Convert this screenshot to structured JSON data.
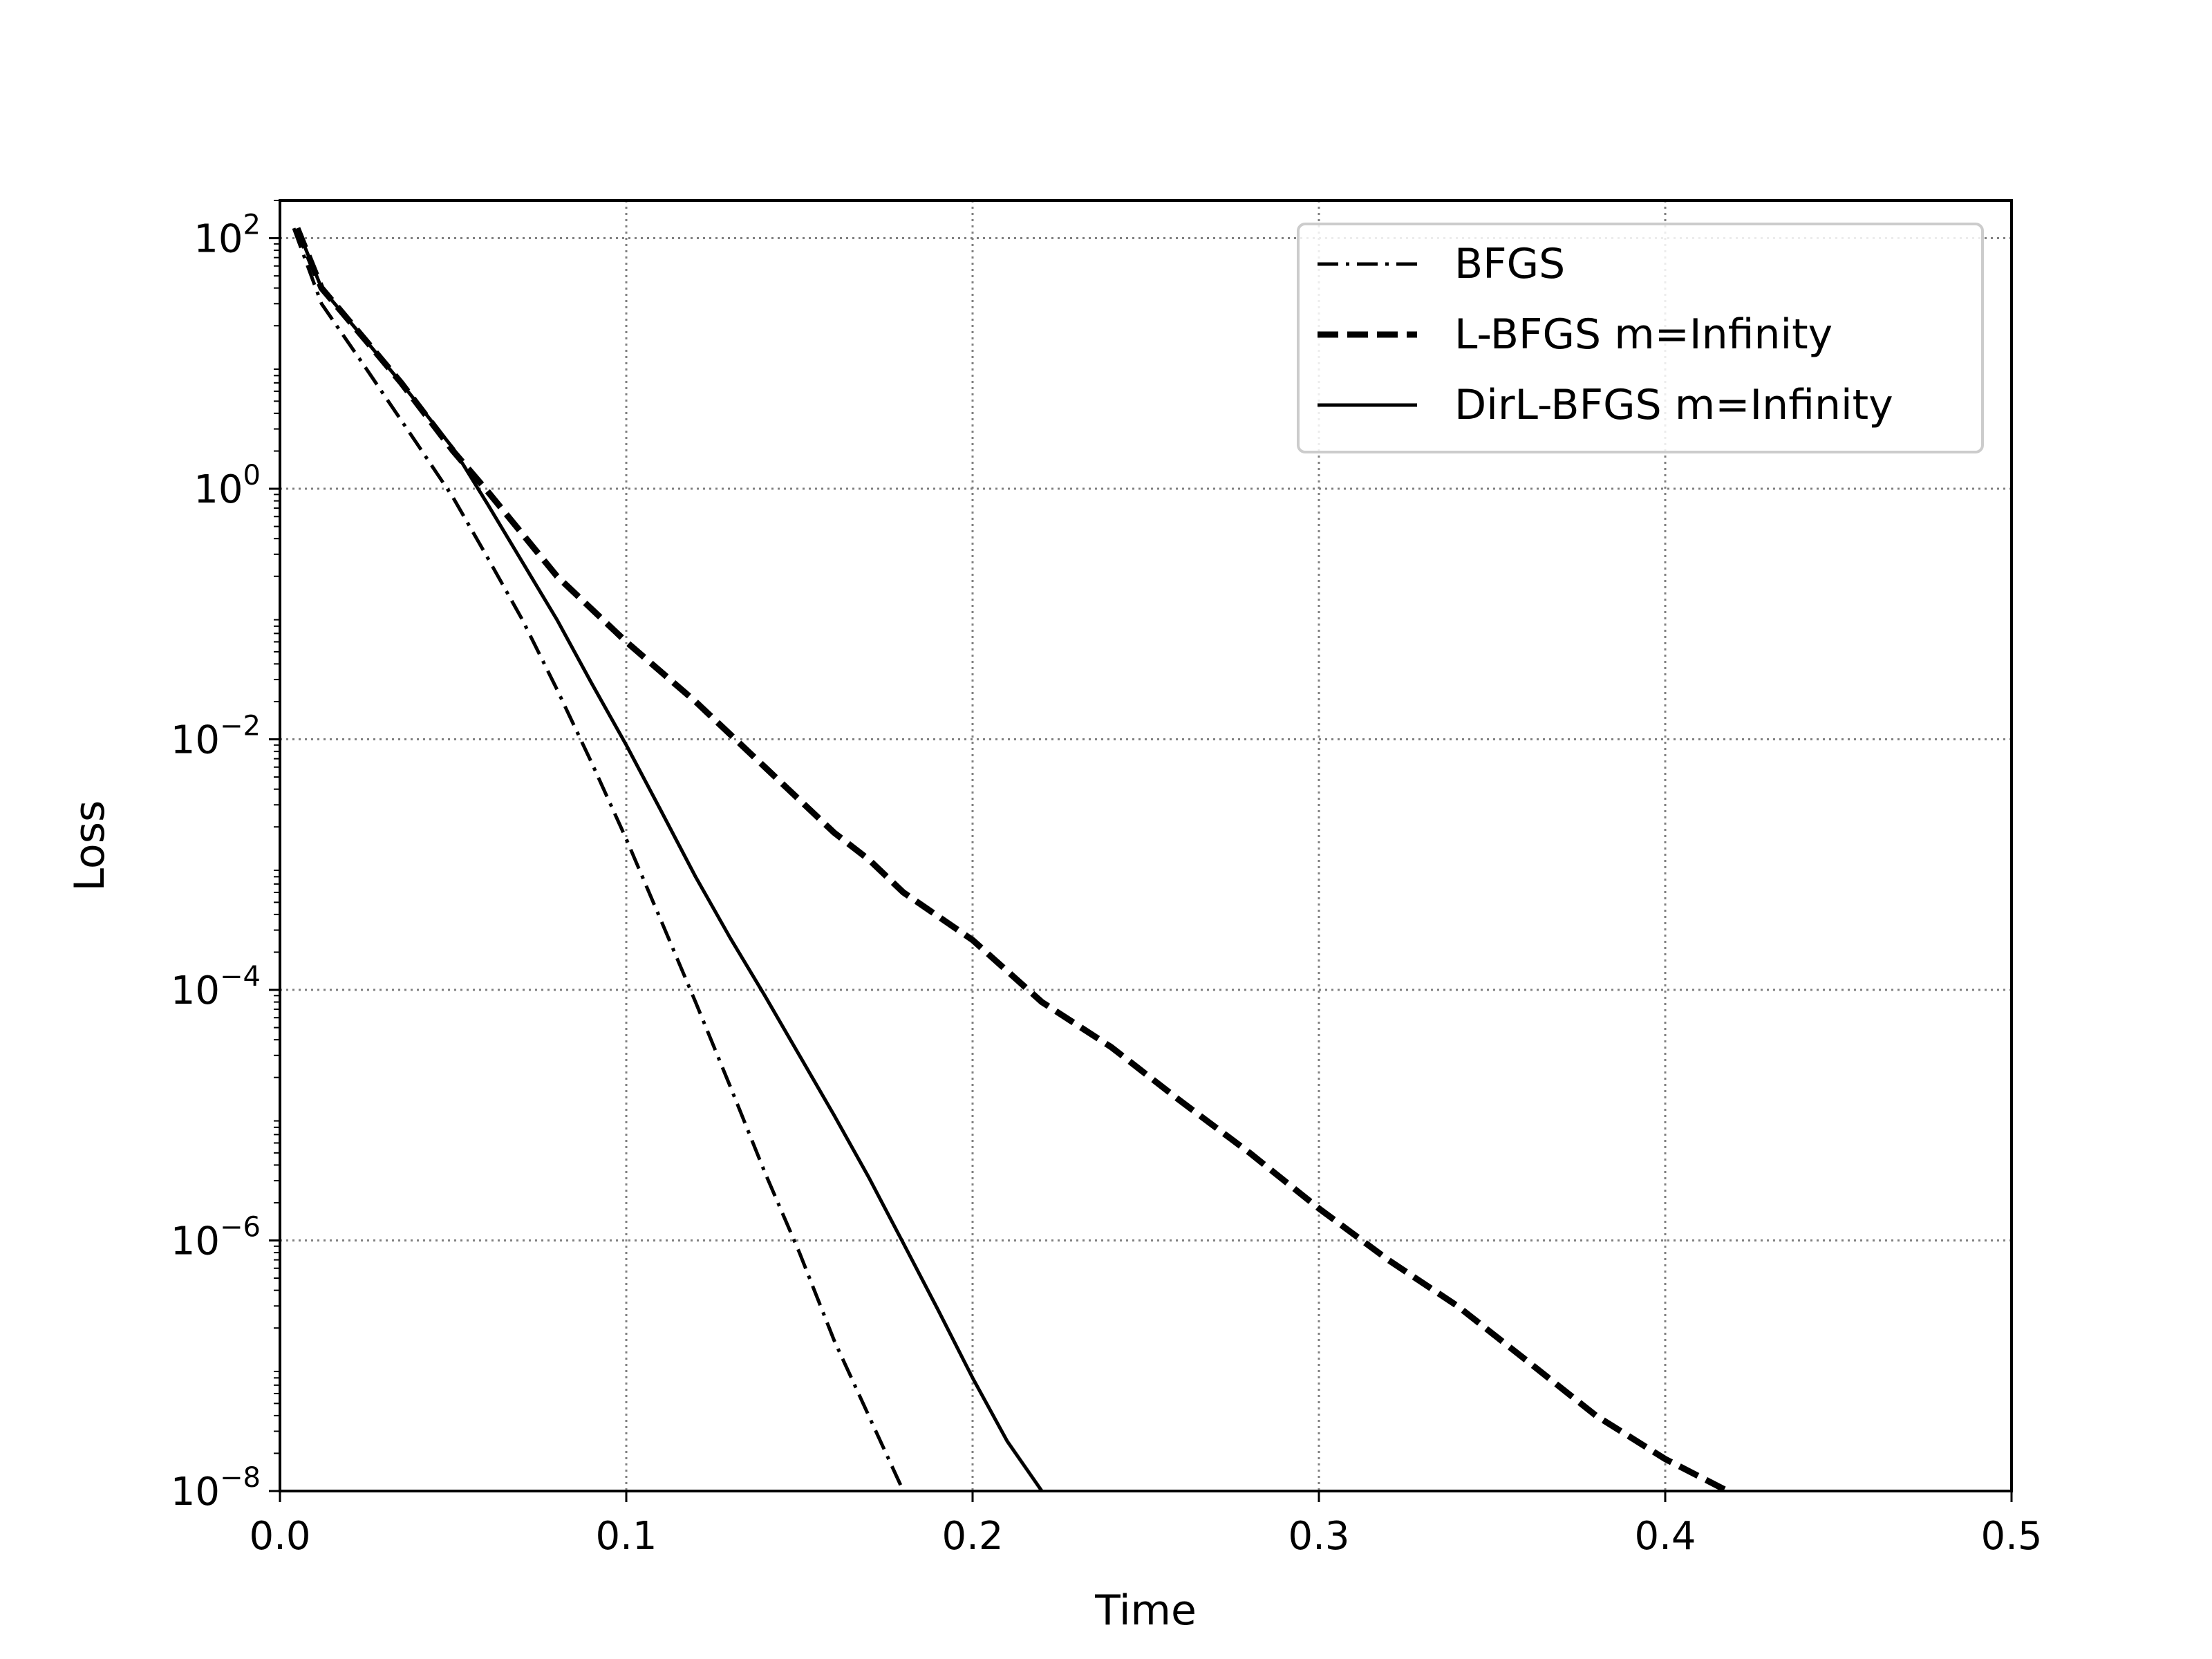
{
  "chart_data": {
    "type": "line",
    "title": "",
    "xlabel": "Time",
    "ylabel": "Loss",
    "xlim": [
      0.0,
      0.5
    ],
    "ylim": [
      1e-08,
      200
    ],
    "yscale": "log",
    "grid": true,
    "legend_position": "top-right",
    "x_ticks": [
      {
        "value": 0.0,
        "label": "0.0"
      },
      {
        "value": 0.1,
        "label": "0.1"
      },
      {
        "value": 0.2,
        "label": "0.2"
      },
      {
        "value": 0.3,
        "label": "0.3"
      },
      {
        "value": 0.4,
        "label": "0.4"
      },
      {
        "value": 0.5,
        "label": "0.5"
      }
    ],
    "y_ticks": [
      {
        "value": 100,
        "base": "10",
        "exp": "2"
      },
      {
        "value": 1,
        "base": "10",
        "exp": "0"
      },
      {
        "value": 0.01,
        "base": "10",
        "exp": "−2"
      },
      {
        "value": 0.0001,
        "base": "10",
        "exp": "−4"
      },
      {
        "value": 1e-06,
        "base": "10",
        "exp": "−6"
      },
      {
        "value": 1e-08,
        "base": "10",
        "exp": "−8"
      }
    ],
    "series": [
      {
        "name": "BFGS",
        "style": "dashdot",
        "color": "#000000",
        "x": [
          0.004,
          0.012,
          0.025,
          0.04,
          0.05,
          0.06,
          0.07,
          0.08,
          0.09,
          0.1,
          0.11,
          0.12,
          0.13,
          0.14,
          0.15,
          0.16,
          0.17,
          0.18
        ],
        "y": [
          120,
          30,
          9,
          2.2,
          0.85,
          0.28,
          0.09,
          0.025,
          0.0065,
          0.0016,
          0.00036,
          8e-05,
          1.7e-05,
          3.5e-06,
          8e-07,
          1.6e-07,
          4e-08,
          1e-08
        ]
      },
      {
        "name": "L-BFGS m=Infinity",
        "style": "dashed",
        "color": "#000000",
        "x": [
          0.005,
          0.012,
          0.025,
          0.035,
          0.05,
          0.06,
          0.08,
          0.1,
          0.12,
          0.14,
          0.16,
          0.17,
          0.18,
          0.2,
          0.22,
          0.24,
          0.26,
          0.28,
          0.3,
          0.32,
          0.34,
          0.36,
          0.38,
          0.4,
          0.418
        ],
        "y": [
          120,
          40,
          15,
          7,
          2.0,
          0.95,
          0.2,
          0.06,
          0.02,
          0.006,
          0.0018,
          0.0011,
          0.0006,
          0.00025,
          8e-05,
          3.5e-05,
          1.3e-05,
          5e-06,
          1.8e-06,
          7e-07,
          3e-07,
          1.1e-07,
          4e-08,
          1.8e-08,
          1e-08
        ]
      },
      {
        "name": "DirL-BFGS m=Infinity",
        "style": "solid",
        "color": "#000000",
        "x": [
          0.005,
          0.012,
          0.025,
          0.035,
          0.05,
          0.06,
          0.07,
          0.08,
          0.09,
          0.1,
          0.11,
          0.12,
          0.13,
          0.14,
          0.15,
          0.16,
          0.17,
          0.18,
          0.19,
          0.2,
          0.21,
          0.22
        ],
        "y": [
          120,
          40,
          15,
          7,
          2.1,
          0.75,
          0.26,
          0.09,
          0.028,
          0.009,
          0.0027,
          0.0008,
          0.00026,
          9e-05,
          3e-05,
          1e-05,
          3.2e-06,
          9.5e-07,
          2.8e-07,
          8e-08,
          2.5e-08,
          1e-08
        ]
      }
    ]
  }
}
